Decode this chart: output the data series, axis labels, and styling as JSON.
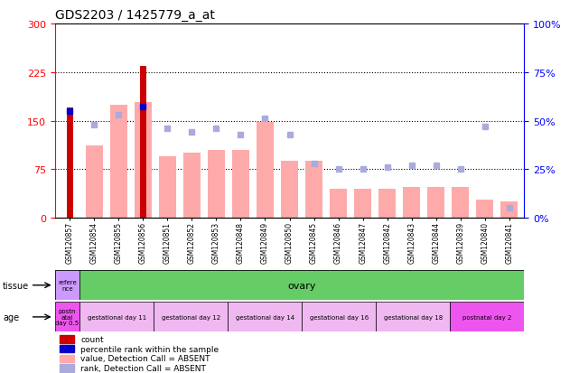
{
  "title": "GDS2203 / 1425779_a_at",
  "samples": [
    "GSM120857",
    "GSM120854",
    "GSM120855",
    "GSM120856",
    "GSM120851",
    "GSM120852",
    "GSM120853",
    "GSM120848",
    "GSM120849",
    "GSM120850",
    "GSM120845",
    "GSM120846",
    "GSM120847",
    "GSM120842",
    "GSM120843",
    "GSM120844",
    "GSM120839",
    "GSM120840",
    "GSM120841"
  ],
  "count_values": [
    170,
    0,
    0,
    235,
    0,
    0,
    0,
    0,
    0,
    0,
    0,
    0,
    0,
    0,
    0,
    0,
    0,
    0,
    0
  ],
  "absent_bar_values": [
    0,
    112,
    175,
    178,
    95,
    100,
    105,
    105,
    148,
    88,
    88,
    45,
    45,
    45,
    48,
    48,
    48,
    28,
    25
  ],
  "percentile_rank_present": [
    55,
    0,
    0,
    57,
    0,
    0,
    0,
    0,
    0,
    0,
    0,
    0,
    0,
    0,
    0,
    0,
    0,
    0,
    0
  ],
  "absent_rank_values": [
    0,
    48,
    53,
    0,
    46,
    44,
    46,
    43,
    51,
    43,
    28,
    25,
    25,
    26,
    27,
    27,
    25,
    47,
    5
  ],
  "ylim_left": [
    0,
    300
  ],
  "ylim_right": [
    0,
    100
  ],
  "yticks_left": [
    0,
    75,
    150,
    225,
    300
  ],
  "yticks_right": [
    0,
    25,
    50,
    75,
    100
  ],
  "ytick_labels_left": [
    "0",
    "75",
    "150",
    "225",
    "300"
  ],
  "ytick_labels_right": [
    "0%",
    "25%",
    "50%",
    "75%",
    "100%"
  ],
  "tissue_ref_label": "refere\nnce",
  "tissue_ref_color": "#cc99ff",
  "tissue_main_label": "ovary",
  "tissue_main_color": "#66cc66",
  "age_segments": [
    {
      "label": "postn\natal\nday 0.5",
      "color": "#ee55ee",
      "span": 1
    },
    {
      "label": "gestational day 11",
      "color": "#f0b8f0",
      "span": 3
    },
    {
      "label": "gestational day 12",
      "color": "#f0b8f0",
      "span": 3
    },
    {
      "label": "gestational day 14",
      "color": "#f0b8f0",
      "span": 3
    },
    {
      "label": "gestational day 16",
      "color": "#f0b8f0",
      "span": 3
    },
    {
      "label": "gestational day 18",
      "color": "#f0b8f0",
      "span": 3
    },
    {
      "label": "postnatal day 2",
      "color": "#ee55ee",
      "span": 3
    }
  ],
  "legend_items": [
    {
      "color": "#cc0000",
      "label": "count"
    },
    {
      "color": "#0000cc",
      "label": "percentile rank within the sample"
    },
    {
      "color": "#ffaaaa",
      "label": "value, Detection Call = ABSENT"
    },
    {
      "color": "#aaaadd",
      "label": "rank, Detection Call = ABSENT"
    }
  ],
  "count_color": "#cc0000",
  "absent_bar_color": "#ffaaaa",
  "percentile_color": "#0000cc",
  "absent_rank_color": "#aaaadd",
  "grid_color": "#000000",
  "bg_color": "#ffffff"
}
